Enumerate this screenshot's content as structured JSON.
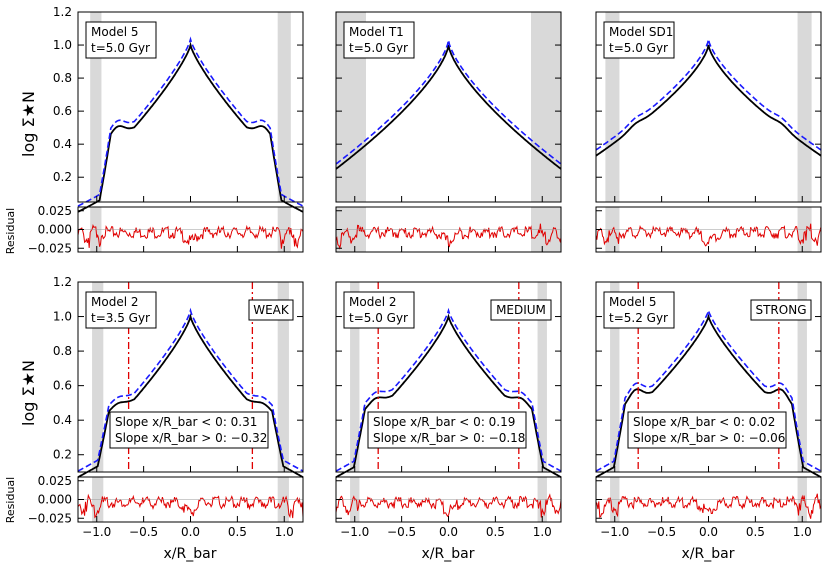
{
  "figure": {
    "ylabel": "log Σ★N",
    "residual_label": "Residual",
    "xlabel": "x/R_bar",
    "colors": {
      "model": "#000000",
      "fit": "#1a1aff",
      "residual": "#e00000",
      "marker": "#e00000",
      "shade": "#d9d9d9"
    }
  },
  "chart_data": [
    {
      "type": "line",
      "row": 0,
      "col": 0,
      "model": "Model 5",
      "time": "t=5.0 Gyr",
      "label": "",
      "xlim": [
        -1.2,
        1.2
      ],
      "ylim": [
        0.05,
        1.2
      ],
      "rylim": [
        -0.03,
        0.03
      ],
      "yticks": [
        0.2,
        0.4,
        0.6,
        0.8,
        1.0,
        1.2
      ],
      "shade": [
        [
          -1.07,
          -0.95
        ],
        [
          0.93,
          1.07
        ]
      ],
      "markers": [],
      "slope_left": "",
      "slope_right": "",
      "shape": {
        "peak": 1.0,
        "shoulder": 0.38,
        "edge": 0.93,
        "tail": 0.05,
        "bump": 0.06
      },
      "offset": 0.035
    },
    {
      "type": "line",
      "row": 0,
      "col": 1,
      "model": "Model T1",
      "time": "t=5.0 Gyr",
      "label": "",
      "xlim": [
        -1.2,
        1.2
      ],
      "ylim": [
        0.05,
        1.2
      ],
      "rylim": [
        -0.03,
        0.03
      ],
      "yticks": [
        0.2,
        0.4,
        0.6,
        0.8,
        1.0,
        1.2
      ],
      "shade": [
        [
          -1.2,
          -0.88
        ],
        [
          0.88,
          1.2
        ]
      ],
      "markers": [],
      "slope_left": "",
      "slope_right": "",
      "shape": {
        "peak": 1.0,
        "shoulder": 0.42,
        "edge": 2.0,
        "tail": 0.25,
        "bump": 0.0
      },
      "offset": 0.03
    },
    {
      "type": "line",
      "row": 0,
      "col": 2,
      "model": "Model SD1",
      "time": "t=5.0 Gyr",
      "label": "",
      "xlim": [
        -1.2,
        1.2
      ],
      "ylim": [
        0.05,
        1.2
      ],
      "rylim": [
        -0.03,
        0.03
      ],
      "yticks": [
        0.2,
        0.4,
        0.6,
        0.8,
        1.0,
        1.2
      ],
      "shade": [
        [
          -1.1,
          -0.95
        ],
        [
          0.95,
          1.1
        ]
      ],
      "markers": [],
      "slope_left": "",
      "slope_right": "",
      "shape": {
        "peak": 1.0,
        "shoulder": 0.45,
        "edge": 2.0,
        "tail": 0.33,
        "bump": 0.02
      },
      "offset": 0.035
    },
    {
      "type": "line",
      "row": 1,
      "col": 0,
      "model": "Model 2",
      "time": "t=3.5 Gyr",
      "label": "WEAK",
      "xlim": [
        -1.2,
        1.2
      ],
      "ylim": [
        0.1,
        1.2
      ],
      "rylim": [
        -0.03,
        0.03
      ],
      "yticks": [
        0.2,
        0.4,
        0.6,
        0.8,
        1.0,
        1.2
      ],
      "shade": [
        [
          -1.05,
          -0.93
        ],
        [
          0.93,
          1.05
        ]
      ],
      "markers": [
        -0.66,
        0.66
      ],
      "slope_left": "Slope x/R_bar < 0: 0.31",
      "slope_right": "Slope x/R_bar > 0: −0.32",
      "shape": {
        "peak": 1.0,
        "shoulder": 0.4,
        "edge": 0.95,
        "tail": 0.13,
        "bump": 0.03
      },
      "offset": 0.035
    },
    {
      "type": "line",
      "row": 1,
      "col": 1,
      "model": "Model 2",
      "time": "t=5.0 Gyr",
      "label": "MEDIUM",
      "xlim": [
        -1.2,
        1.2
      ],
      "ylim": [
        0.1,
        1.2
      ],
      "rylim": [
        -0.03,
        0.03
      ],
      "yticks": [
        0.2,
        0.4,
        0.6,
        0.8,
        1.0,
        1.2
      ],
      "shade": [
        [
          -1.05,
          -0.95
        ],
        [
          0.95,
          1.05
        ]
      ],
      "markers": [
        -0.75,
        0.75
      ],
      "slope_left": "Slope x/R_bar < 0: 0.19",
      "slope_right": "Slope x/R_bar > 0: −0.18",
      "shape": {
        "peak": 1.0,
        "shoulder": 0.42,
        "edge": 0.97,
        "tail": 0.13,
        "bump": 0.04
      },
      "offset": 0.035
    },
    {
      "type": "line",
      "row": 1,
      "col": 2,
      "model": "Model 5",
      "time": "t=5.2 Gyr",
      "label": "STRONG",
      "xlim": [
        -1.2,
        1.2
      ],
      "ylim": [
        0.1,
        1.2
      ],
      "rylim": [
        -0.03,
        0.03
      ],
      "yticks": [
        0.2,
        0.4,
        0.6,
        0.8,
        1.0,
        1.2
      ],
      "shade": [
        [
          -1.05,
          -0.95
        ],
        [
          0.95,
          1.05
        ]
      ],
      "markers": [
        -0.75,
        0.75
      ],
      "slope_left": "Slope x/R_bar < 0: 0.02",
      "slope_right": "Slope x/R_bar > 0: −0.06",
      "shape": {
        "peak": 1.0,
        "shoulder": 0.44,
        "edge": 0.97,
        "tail": 0.13,
        "bump": 0.07
      },
      "offset": 0.035
    }
  ]
}
